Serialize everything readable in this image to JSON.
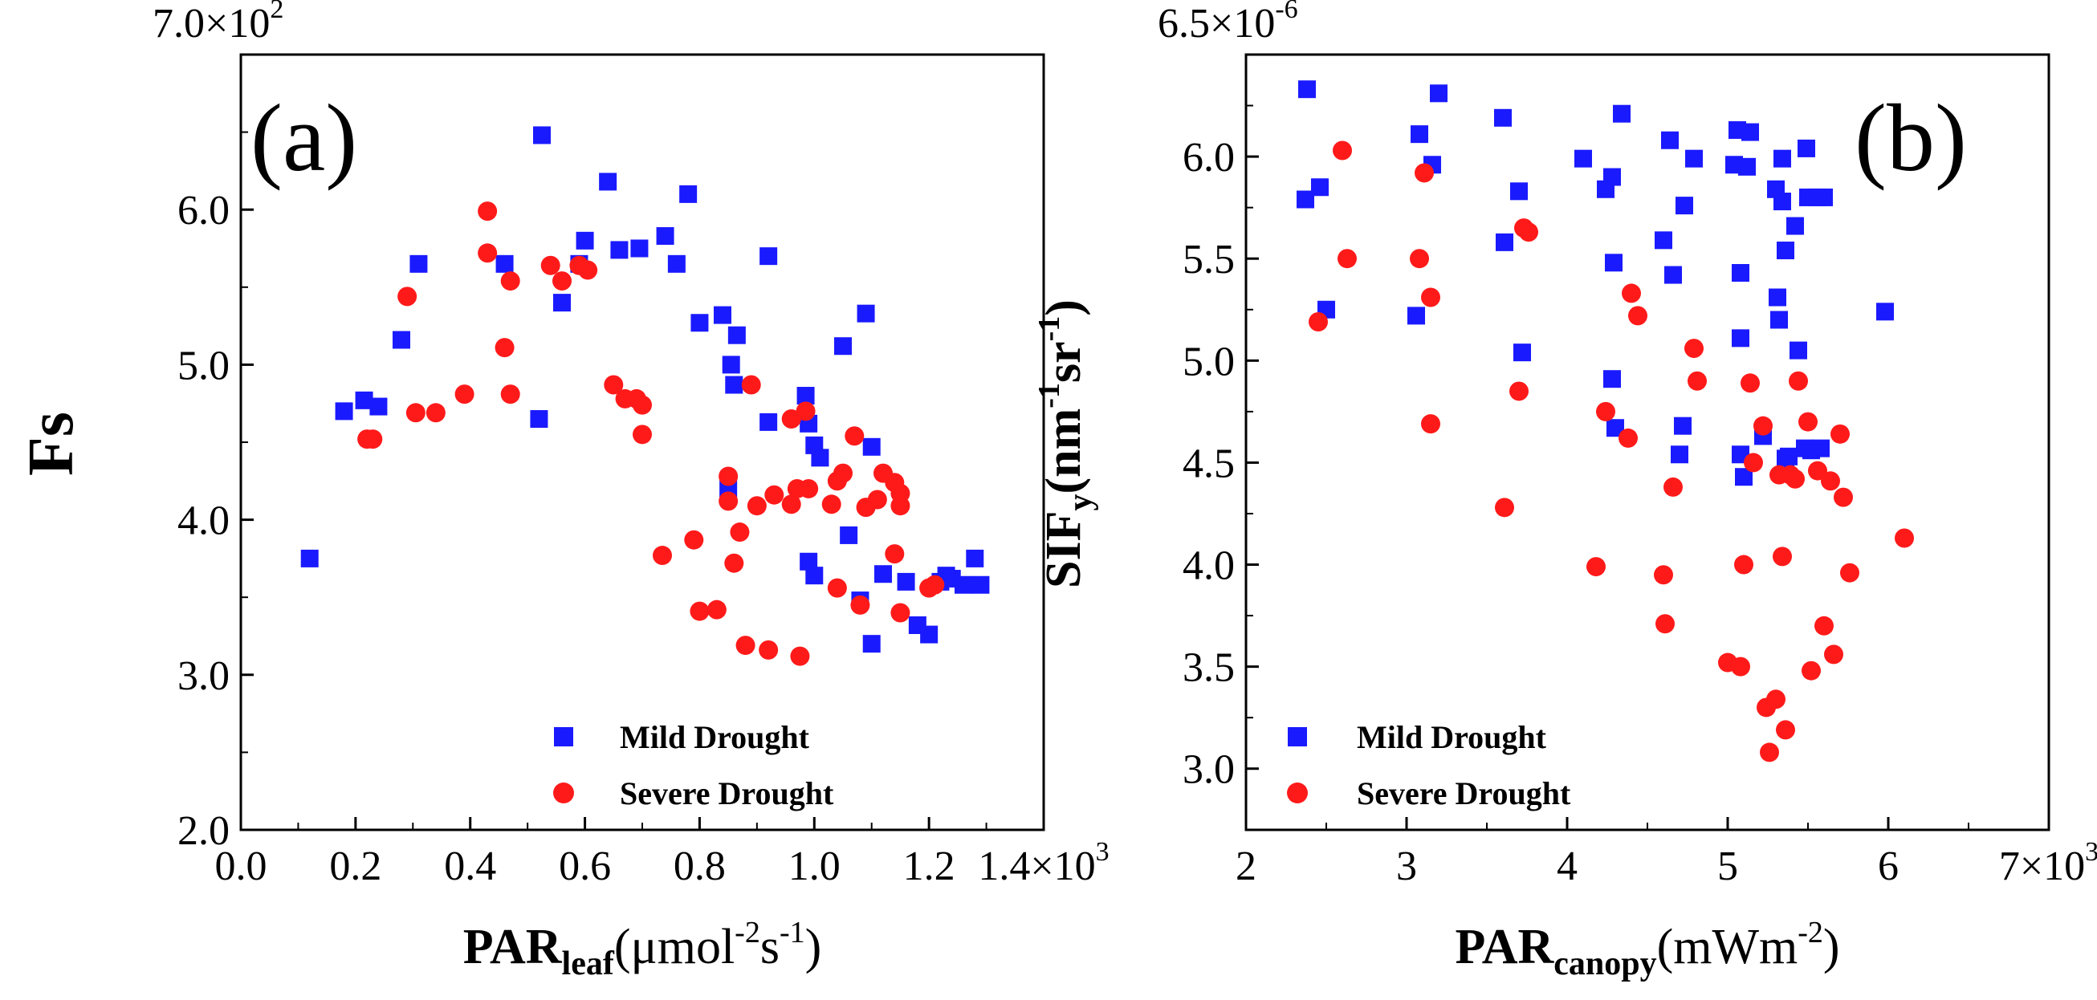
{
  "chart_data": [
    {
      "type": "scatter",
      "panel_label": "(a)",
      "ylabel": "Fs",
      "xlabel": {
        "main": "PAR",
        "sub": "leaf",
        "rest": "(μmol",
        "sup": "-2",
        "tail": "s",
        "sup2": "-1",
        "end": ")"
      },
      "xlim": [
        0,
        1400
      ],
      "ylim": [
        200,
        700
      ],
      "x_ticks": [
        "0.0",
        "0.2",
        "0.4",
        "0.6",
        "0.8",
        "1.0",
        "1.2",
        "1.4×10"
      ],
      "x_tick_exp": "3",
      "y_ticks": [
        "2.0",
        "3.0",
        "4.0",
        "5.0",
        "6.0",
        "7.0×10"
      ],
      "y_tick_exp": "2",
      "grid": false,
      "legend_position": "bottom-right",
      "series": [
        {
          "name": "Mild Drought",
          "marker": "square",
          "color": "#1a1aff",
          "points": [
            [
              120,
              375
            ],
            [
              180,
              470
            ],
            [
              215,
              477
            ],
            [
              240,
              473
            ],
            [
              280,
              516
            ],
            [
              310,
              565
            ],
            [
              460,
              565
            ],
            [
              520,
              465
            ],
            [
              525,
              648
            ],
            [
              560,
              540
            ],
            [
              590,
              565
            ],
            [
              600,
              580
            ],
            [
              640,
              618
            ],
            [
              660,
              574
            ],
            [
              695,
              575
            ],
            [
              740,
              583
            ],
            [
              760,
              565
            ],
            [
              780,
              610
            ],
            [
              800,
              527
            ],
            [
              840,
              532
            ],
            [
              855,
              500
            ],
            [
              860,
              487
            ],
            [
              865,
              519
            ],
            [
              850,
              420
            ],
            [
              920,
              570
            ],
            [
              920,
              463
            ],
            [
              985,
              480
            ],
            [
              990,
              462
            ],
            [
              990,
              373
            ],
            [
              1000,
              448
            ],
            [
              1000,
              364
            ],
            [
              1010,
              440
            ],
            [
              1050,
              512
            ],
            [
              1060,
              390
            ],
            [
              1080,
              348
            ],
            [
              1090,
              533
            ],
            [
              1100,
              447
            ],
            [
              1120,
              365
            ],
            [
              1100,
              320
            ],
            [
              1160,
              360
            ],
            [
              1180,
              332
            ],
            [
              1200,
              326
            ],
            [
              1220,
              360
            ],
            [
              1230,
              364
            ],
            [
              1240,
              362
            ],
            [
              1260,
              358
            ],
            [
              1280,
              375
            ],
            [
              1290,
              358
            ]
          ]
        },
        {
          "name": "Severe Drought",
          "marker": "circle",
          "color": "#ff1a1a",
          "points": [
            [
              220,
              452
            ],
            [
              230,
              452
            ],
            [
              290,
              544
            ],
            [
              305,
              469
            ],
            [
              340,
              469
            ],
            [
              390,
              481
            ],
            [
              430,
              599
            ],
            [
              430,
              572
            ],
            [
              460,
              511
            ],
            [
              470,
              554
            ],
            [
              470,
              481
            ],
            [
              540,
              564
            ],
            [
              560,
              554
            ],
            [
              590,
              564
            ],
            [
              605,
              561
            ],
            [
              650,
              487
            ],
            [
              670,
              478
            ],
            [
              700,
              474
            ],
            [
              690,
              478
            ],
            [
              700,
              455
            ],
            [
              735,
              377
            ],
            [
              790,
              387
            ],
            [
              800,
              341
            ],
            [
              830,
              342
            ],
            [
              850,
              428
            ],
            [
              850,
              412
            ],
            [
              860,
              372
            ],
            [
              870,
              392
            ],
            [
              880,
              319
            ],
            [
              890,
              487
            ],
            [
              900,
              409
            ],
            [
              920,
              316
            ],
            [
              930,
              416
            ],
            [
              960,
              410
            ],
            [
              960,
              465
            ],
            [
              970,
              420
            ],
            [
              975,
              312
            ],
            [
              985,
              470
            ],
            [
              990,
              420
            ],
            [
              1030,
              410
            ],
            [
              1040,
              425
            ],
            [
              1050,
              430
            ],
            [
              1040,
              356
            ],
            [
              1070,
              454
            ],
            [
              1080,
              345
            ],
            [
              1090,
              408
            ],
            [
              1110,
              413
            ],
            [
              1120,
              430
            ],
            [
              1140,
              424
            ],
            [
              1150,
              417
            ],
            [
              1150,
              409
            ],
            [
              1140,
              378
            ],
            [
              1150,
              340
            ],
            [
              1200,
              356
            ],
            [
              1210,
              358
            ]
          ]
        }
      ]
    },
    {
      "type": "scatter",
      "panel_label": "(b)",
      "ylabel": {
        "main": "SIF",
        "sub": "y",
        "rest": "(nm",
        "sup": "-1",
        "tail": "sr",
        "sup2": "-1",
        "end": ")"
      },
      "xlabel": {
        "main": "PAR",
        "sub": "canopy",
        "rest": "(mWm",
        "sup": "-2",
        "end": ")"
      },
      "xlim": [
        2000,
        7000
      ],
      "ylim": [
        2.7,
        6.5
      ],
      "x_ticks": [
        "2",
        "3",
        "4",
        "5",
        "6",
        "7×10"
      ],
      "x_tick_exp": "3",
      "y_ticks": [
        "3.0",
        "3.5",
        "4.0",
        "4.5",
        "5.0",
        "5.5",
        "6.0",
        "6.5×10"
      ],
      "y_tick_exp": "-6",
      "grid": false,
      "legend_position": "bottom-left",
      "series": [
        {
          "name": "Mild Drought",
          "marker": "square",
          "color": "#1a1aff",
          "points": [
            [
              2370,
              5.79
            ],
            [
              2380,
              6.33
            ],
            [
              2460,
              5.85
            ],
            [
              2500,
              5.25
            ],
            [
              3060,
              5.22
            ],
            [
              3080,
              6.11
            ],
            [
              3160,
              5.96
            ],
            [
              3200,
              6.31
            ],
            [
              3600,
              6.19
            ],
            [
              3610,
              5.58
            ],
            [
              3700,
              5.83
            ],
            [
              3720,
              5.04
            ],
            [
              4100,
              5.99
            ],
            [
              4240,
              5.84
            ],
            [
              4280,
              5.9
            ],
            [
              4290,
              5.48
            ],
            [
              4280,
              4.91
            ],
            [
              4300,
              4.67
            ],
            [
              4340,
              6.21
            ],
            [
              4600,
              5.59
            ],
            [
              4640,
              6.08
            ],
            [
              4660,
              5.42
            ],
            [
              4700,
              4.54
            ],
            [
              4720,
              4.68
            ],
            [
              4730,
              5.76
            ],
            [
              4790,
              5.99
            ],
            [
              5040,
              5.96
            ],
            [
              5060,
              6.13
            ],
            [
              5080,
              5.43
            ],
            [
              5080,
              5.11
            ],
            [
              5080,
              4.54
            ],
            [
              5100,
              4.43
            ],
            [
              5120,
              5.95
            ],
            [
              5140,
              6.12
            ],
            [
              5220,
              4.63
            ],
            [
              5300,
              5.84
            ],
            [
              5310,
              5.31
            ],
            [
              5320,
              5.2
            ],
            [
              5340,
              5.99
            ],
            [
              5340,
              5.78
            ],
            [
              5360,
              5.54
            ],
            [
              5360,
              4.52
            ],
            [
              5380,
              4.53
            ],
            [
              5420,
              5.66
            ],
            [
              5440,
              5.05
            ],
            [
              5480,
              4.57
            ],
            [
              5490,
              6.04
            ],
            [
              5500,
              5.8
            ],
            [
              5520,
              4.56
            ],
            [
              5560,
              5.8
            ],
            [
              5580,
              4.57
            ],
            [
              5600,
              5.8
            ],
            [
              5980,
              5.24
            ]
          ]
        },
        {
          "name": "Severe Drought",
          "marker": "circle",
          "color": "#ff1a1a",
          "points": [
            [
              2450,
              5.19
            ],
            [
              2600,
              6.03
            ],
            [
              2630,
              5.5
            ],
            [
              3080,
              5.5
            ],
            [
              3110,
              5.92
            ],
            [
              3150,
              5.31
            ],
            [
              3150,
              4.69
            ],
            [
              3610,
              4.28
            ],
            [
              3700,
              4.85
            ],
            [
              3730,
              5.65
            ],
            [
              3760,
              5.63
            ],
            [
              4180,
              3.99
            ],
            [
              4240,
              4.75
            ],
            [
              4380,
              4.62
            ],
            [
              4400,
              5.33
            ],
            [
              4440,
              5.22
            ],
            [
              4600,
              3.95
            ],
            [
              4610,
              3.71
            ],
            [
              4660,
              4.38
            ],
            [
              4790,
              5.06
            ],
            [
              4810,
              4.9
            ],
            [
              5000,
              3.52
            ],
            [
              5080,
              3.5
            ],
            [
              5100,
              4.0
            ],
            [
              5140,
              4.89
            ],
            [
              5160,
              4.5
            ],
            [
              5220,
              4.68
            ],
            [
              5240,
              3.3
            ],
            [
              5260,
              3.08
            ],
            [
              5300,
              3.34
            ],
            [
              5320,
              4.44
            ],
            [
              5340,
              4.04
            ],
            [
              5360,
              3.19
            ],
            [
              5390,
              4.44
            ],
            [
              5420,
              4.42
            ],
            [
              5440,
              4.9
            ],
            [
              5500,
              4.7
            ],
            [
              5520,
              3.48
            ],
            [
              5560,
              4.46
            ],
            [
              5600,
              3.7
            ],
            [
              5640,
              4.41
            ],
            [
              5660,
              3.56
            ],
            [
              5700,
              4.64
            ],
            [
              5720,
              4.33
            ],
            [
              5760,
              3.96
            ],
            [
              6100,
              4.13
            ]
          ]
        }
      ]
    }
  ]
}
